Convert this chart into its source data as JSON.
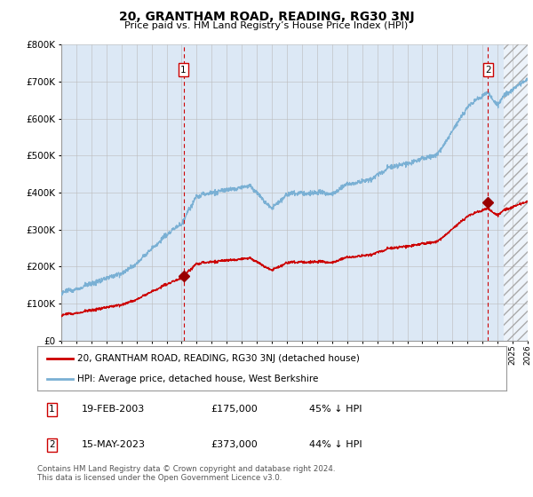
{
  "title": "20, GRANTHAM ROAD, READING, RG30 3NJ",
  "subtitle": "Price paid vs. HM Land Registry’s House Price Index (HPI)",
  "legend_line1": "20, GRANTHAM ROAD, READING, RG30 3NJ (detached house)",
  "legend_line2": "HPI: Average price, detached house, West Berkshire",
  "footnote": "Contains HM Land Registry data © Crown copyright and database right 2024.\nThis data is licensed under the Open Government Licence v3.0.",
  "sale1_date": "19-FEB-2003",
  "sale1_price": "£175,000",
  "sale1_hpi": "45% ↓ HPI",
  "sale2_date": "15-MAY-2023",
  "sale2_price": "£373,000",
  "sale2_hpi": "44% ↓ HPI",
  "sale1_x": 2003.12,
  "sale1_y": 175000,
  "sale2_x": 2023.37,
  "sale2_y": 373000,
  "ylim": [
    0,
    800000
  ],
  "xlim": [
    1995,
    2026
  ],
  "plot_bg_color": "#dce8f5",
  "hatch_start": 2024.42,
  "red_color": "#cc0000",
  "blue_color": "#7ab0d4",
  "grid_color": "#bbbbbb",
  "marker_color": "#990000"
}
